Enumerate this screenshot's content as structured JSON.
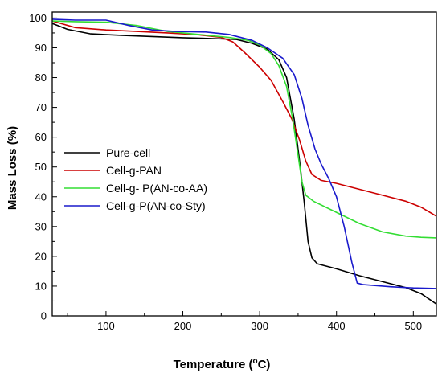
{
  "chart_data": {
    "type": "line",
    "title": "",
    "xlabel": "Temperature (",
    "xlabel_degree": "o",
    "xlabel_unit": "C)",
    "ylabel": "Mass Loss (%)",
    "xlim": [
      30,
      530
    ],
    "ylim": [
      0,
      102
    ],
    "xticks": [
      100,
      200,
      300,
      400,
      500
    ],
    "yticks": [
      0,
      10,
      20,
      30,
      40,
      50,
      60,
      70,
      80,
      90,
      100
    ],
    "grid": false,
    "legend_position": "center-left",
    "series": [
      {
        "name": "Pure-cell",
        "color": "#000000",
        "points": [
          [
            30,
            98.2
          ],
          [
            50,
            96.2
          ],
          [
            80,
            94.7
          ],
          [
            120,
            94.2
          ],
          [
            160,
            93.8
          ],
          [
            200,
            93.4
          ],
          [
            240,
            93.1
          ],
          [
            270,
            92.8
          ],
          [
            290,
            91.5
          ],
          [
            310,
            89.5
          ],
          [
            325,
            86
          ],
          [
            335,
            80
          ],
          [
            345,
            66
          ],
          [
            352,
            52
          ],
          [
            358,
            38
          ],
          [
            363,
            25
          ],
          [
            368,
            19.5
          ],
          [
            375,
            17.5
          ],
          [
            400,
            15.8
          ],
          [
            430,
            13.5
          ],
          [
            460,
            11.5
          ],
          [
            490,
            9.5
          ],
          [
            510,
            7.5
          ],
          [
            530,
            4
          ]
        ]
      },
      {
        "name": "Cell-g-PAN",
        "color": "#cc0000",
        "points": [
          [
            30,
            99
          ],
          [
            60,
            96.8
          ],
          [
            100,
            96
          ],
          [
            140,
            95.5
          ],
          [
            180,
            95
          ],
          [
            220,
            94.4
          ],
          [
            250,
            93.5
          ],
          [
            265,
            92
          ],
          [
            280,
            88.5
          ],
          [
            300,
            83.5
          ],
          [
            315,
            79
          ],
          [
            330,
            72
          ],
          [
            342,
            66
          ],
          [
            352,
            59
          ],
          [
            360,
            52
          ],
          [
            368,
            47.5
          ],
          [
            380,
            45.5
          ],
          [
            400,
            44.5
          ],
          [
            430,
            42.5
          ],
          [
            460,
            40.5
          ],
          [
            490,
            38.5
          ],
          [
            510,
            36.5
          ],
          [
            530,
            33.5
          ]
        ]
      },
      {
        "name": "Cell-g- P(AN-co-AA)",
        "color": "#33dd33",
        "points": [
          [
            30,
            99
          ],
          [
            60,
            98.8
          ],
          [
            100,
            98.6
          ],
          [
            140,
            97.5
          ],
          [
            180,
            95.5
          ],
          [
            220,
            94.5
          ],
          [
            260,
            93.5
          ],
          [
            285,
            92.5
          ],
          [
            300,
            91
          ],
          [
            315,
            88
          ],
          [
            325,
            84
          ],
          [
            335,
            77
          ],
          [
            343,
            66
          ],
          [
            350,
            54
          ],
          [
            355,
            45
          ],
          [
            360,
            40.5
          ],
          [
            370,
            38.5
          ],
          [
            390,
            36
          ],
          [
            410,
            33.5
          ],
          [
            430,
            31
          ],
          [
            460,
            28.2
          ],
          [
            490,
            26.8
          ],
          [
            510,
            26.4
          ],
          [
            530,
            26.2
          ]
        ]
      },
      {
        "name": "Cell-g-P(AN-co-Sty)",
        "color": "#1a1acc",
        "points": [
          [
            30,
            99.6
          ],
          [
            60,
            99.3
          ],
          [
            100,
            99.3
          ],
          [
            130,
            97.5
          ],
          [
            160,
            96
          ],
          [
            190,
            95.5
          ],
          [
            230,
            95.3
          ],
          [
            260,
            94.5
          ],
          [
            290,
            92.5
          ],
          [
            310,
            90
          ],
          [
            330,
            86.5
          ],
          [
            345,
            81
          ],
          [
            355,
            73
          ],
          [
            363,
            64
          ],
          [
            372,
            56
          ],
          [
            380,
            51
          ],
          [
            390,
            46
          ],
          [
            400,
            40
          ],
          [
            410,
            30
          ],
          [
            420,
            18
          ],
          [
            427,
            11
          ],
          [
            435,
            10.5
          ],
          [
            470,
            9.8
          ],
          [
            500,
            9.4
          ],
          [
            530,
            9.2
          ]
        ]
      }
    ]
  }
}
